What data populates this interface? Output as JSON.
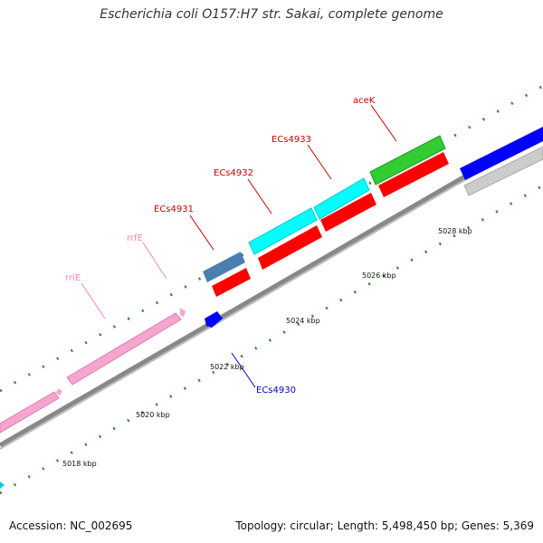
{
  "title": "Escherichia coli O157:H7 str. Sakai, complete genome",
  "footer": {
    "accession": "Accession: NC_002695",
    "summary": "Topology: circular; Length: 5,498,450 bp; Genes: 5,369"
  },
  "scale_labels": [
    "5018 kbp",
    "5020 kbp",
    "5022 kbp",
    "5024 kbp",
    "5026 kbp",
    "5028 kbp"
  ],
  "gene_labels": [
    {
      "name": "rrlE",
      "color": "#ee88bb"
    },
    {
      "name": "rrfE",
      "color": "#ee88bb"
    },
    {
      "name": "ECs4931",
      "color": "#cc0000"
    },
    {
      "name": "ECs4932",
      "color": "#cc0000"
    },
    {
      "name": "ECs4933",
      "color": "#cc0000"
    },
    {
      "name": "aceK",
      "color": "#cc0000"
    },
    {
      "name": "ECs4930",
      "color": "#0000cc"
    }
  ],
  "colors": {
    "rRNA": "#f4a6cf",
    "forward_cds": "#ff0000",
    "cyan": "#00ffff",
    "green": "#33cc33",
    "steel_blue": "#4a7fb0",
    "blue": "#0000ff",
    "gray": "#cccccc",
    "backbone": "#888888",
    "ticks": "#2d8a2d"
  }
}
